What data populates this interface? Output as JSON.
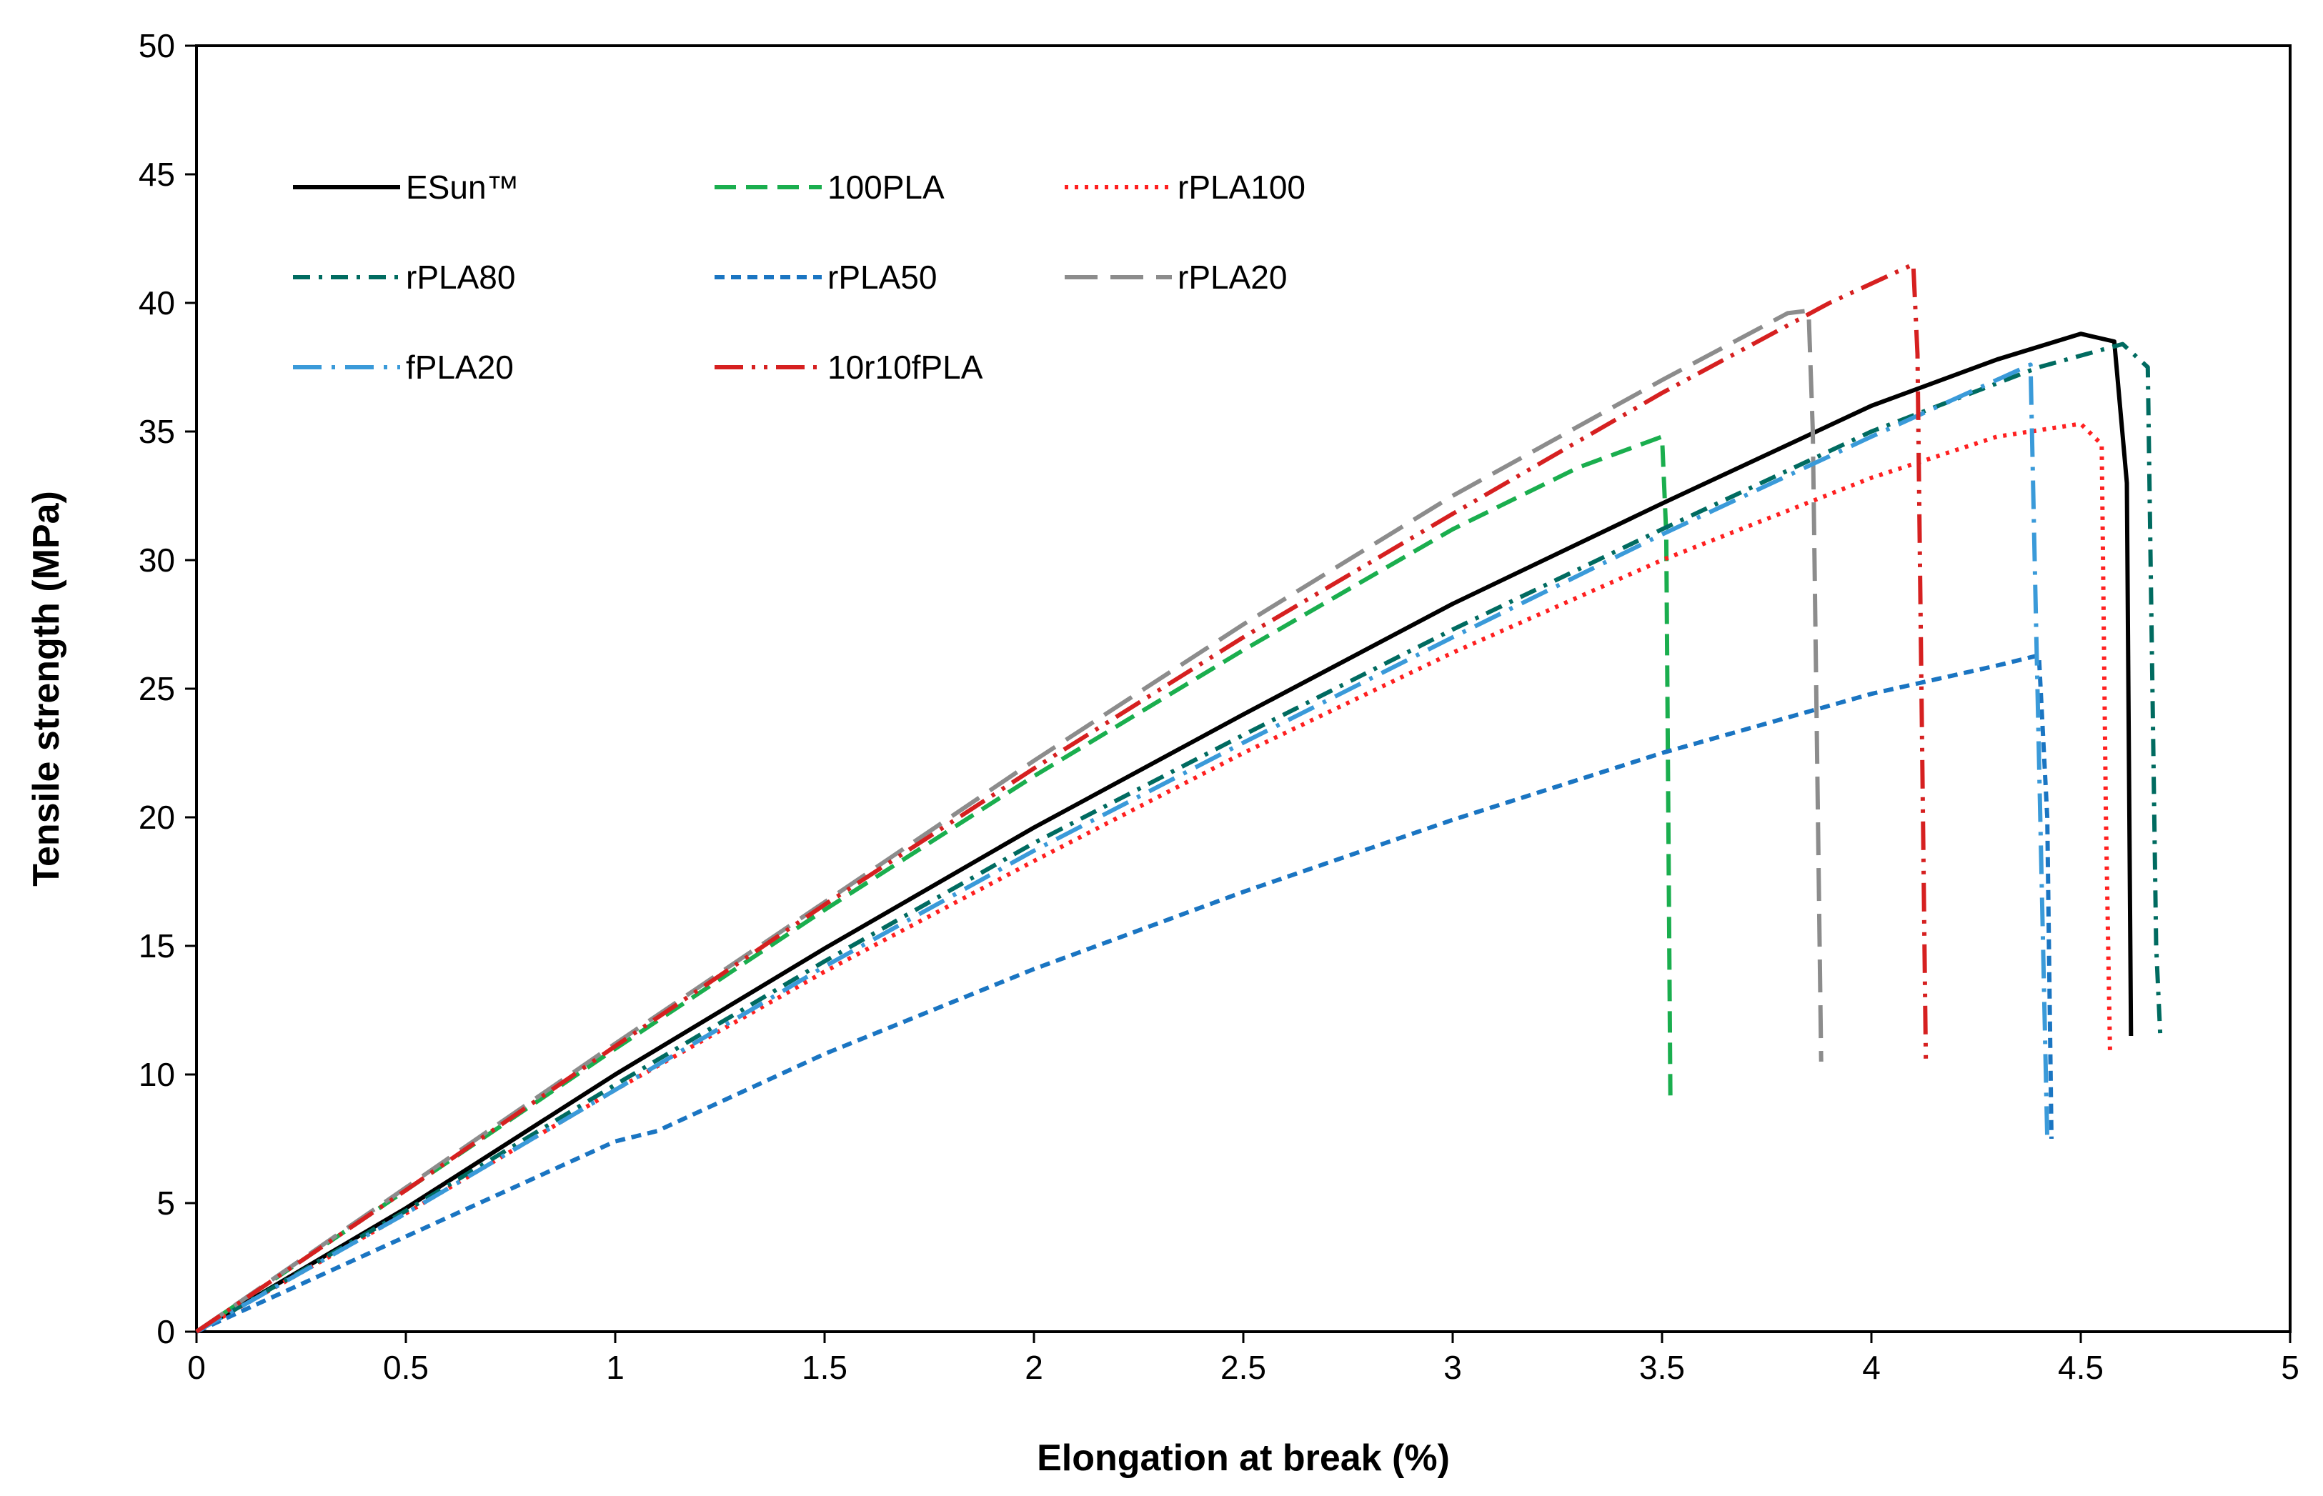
{
  "chart_data": {
    "type": "line",
    "title": "",
    "xlabel": "Elongation at break (%)",
    "ylabel": "Tensile strength (MPa)",
    "xlim": [
      0,
      5
    ],
    "ylim": [
      0,
      50
    ],
    "x_ticks": [
      "0",
      "0.5",
      "1",
      "1.5",
      "2",
      "2.5",
      "3",
      "3.5",
      "4",
      "4.5",
      "5"
    ],
    "y_ticks": [
      "0",
      "5",
      "10",
      "15",
      "20",
      "25",
      "30",
      "35",
      "40",
      "45",
      "50"
    ],
    "grid": false,
    "legend_position": "top-left",
    "series": [
      {
        "name": "ESun™",
        "color": "#000000",
        "dash": "solid",
        "points": [
          [
            0,
            0
          ],
          [
            0.5,
            4.8
          ],
          [
            1,
            10
          ],
          [
            1.5,
            14.9
          ],
          [
            2,
            19.6
          ],
          [
            2.5,
            24
          ],
          [
            3,
            28.3
          ],
          [
            3.5,
            32.2
          ],
          [
            4,
            36
          ],
          [
            4.3,
            37.8
          ],
          [
            4.5,
            38.8
          ],
          [
            4.58,
            38.5
          ],
          [
            4.61,
            33
          ],
          [
            4.62,
            11.5
          ]
        ]
      },
      {
        "name": "100PLA",
        "color": "#1aae4e",
        "dash": "dashed",
        "points": [
          [
            0,
            0
          ],
          [
            0.5,
            5.5
          ],
          [
            1,
            11
          ],
          [
            1.5,
            16.4
          ],
          [
            2,
            21.6
          ],
          [
            2.5,
            26.5
          ],
          [
            3,
            31.2
          ],
          [
            3.3,
            33.6
          ],
          [
            3.5,
            34.8
          ],
          [
            3.51,
            31
          ],
          [
            3.52,
            9
          ]
        ]
      },
      {
        "name": "rPLA100",
        "color": "#ff2020",
        "dash": "dotted",
        "points": [
          [
            0,
            0
          ],
          [
            0.5,
            4.6
          ],
          [
            1,
            9.4
          ],
          [
            1.5,
            14
          ],
          [
            2,
            18.3
          ],
          [
            2.5,
            22.5
          ],
          [
            3,
            26.4
          ],
          [
            3.5,
            30
          ],
          [
            4,
            33.2
          ],
          [
            4.3,
            34.8
          ],
          [
            4.5,
            35.3
          ],
          [
            4.55,
            34.5
          ],
          [
            4.56,
            20
          ],
          [
            4.57,
            10.8
          ]
        ]
      },
      {
        "name": "rPLA80",
        "color": "#006b60",
        "dash": "dashdot",
        "points": [
          [
            0,
            0
          ],
          [
            0.5,
            4.7
          ],
          [
            1,
            9.6
          ],
          [
            1.5,
            14.4
          ],
          [
            2,
            19
          ],
          [
            2.5,
            23.2
          ],
          [
            3,
            27.3
          ],
          [
            3.5,
            31.2
          ],
          [
            4,
            35
          ],
          [
            4.4,
            37.5
          ],
          [
            4.6,
            38.4
          ],
          [
            4.66,
            37.5
          ],
          [
            4.68,
            15
          ],
          [
            4.69,
            11.5
          ]
        ]
      },
      {
        "name": "rPLA50",
        "color": "#1a75c2",
        "dash": "shortdash",
        "points": [
          [
            0,
            0
          ],
          [
            0.5,
            3.7
          ],
          [
            1,
            7.4
          ],
          [
            1.1,
            7.8
          ],
          [
            1.5,
            10.8
          ],
          [
            2,
            14.1
          ],
          [
            2.5,
            17.1
          ],
          [
            3,
            19.9
          ],
          [
            3.5,
            22.5
          ],
          [
            4,
            24.8
          ],
          [
            4.3,
            25.9
          ],
          [
            4.4,
            26.3
          ],
          [
            4.42,
            20
          ],
          [
            4.43,
            7.5
          ]
        ]
      },
      {
        "name": "rPLA20",
        "color": "#8c8c8c",
        "dash": "longdash",
        "points": [
          [
            0,
            0
          ],
          [
            0.5,
            5.6
          ],
          [
            1,
            11.2
          ],
          [
            1.5,
            16.7
          ],
          [
            2,
            22.2
          ],
          [
            2.5,
            27.5
          ],
          [
            3,
            32.5
          ],
          [
            3.5,
            37
          ],
          [
            3.8,
            39.6
          ],
          [
            3.85,
            39.7
          ],
          [
            3.86,
            35
          ],
          [
            3.88,
            10.5
          ]
        ]
      },
      {
        "name": "fPLA20",
        "color": "#3a9ad9",
        "dash": "longdashdot",
        "points": [
          [
            0,
            0
          ],
          [
            0.5,
            4.6
          ],
          [
            1,
            9.4
          ],
          [
            1.5,
            14.2
          ],
          [
            2,
            18.7
          ],
          [
            2.5,
            22.9
          ],
          [
            3,
            27
          ],
          [
            3.5,
            31
          ],
          [
            4,
            34.8
          ],
          [
            4.38,
            37.6
          ],
          [
            4.39,
            30
          ],
          [
            4.42,
            7.5
          ]
        ]
      },
      {
        "name": "10r10fPLA",
        "color": "#d62020",
        "dash": "longdashdotdot",
        "points": [
          [
            0,
            0
          ],
          [
            0.5,
            5.5
          ],
          [
            1,
            11.1
          ],
          [
            1.5,
            16.6
          ],
          [
            2,
            21.9
          ],
          [
            2.5,
            27
          ],
          [
            3,
            31.8
          ],
          [
            3.5,
            36.5
          ],
          [
            3.9,
            40
          ],
          [
            4.1,
            41.5
          ],
          [
            4.11,
            38
          ],
          [
            4.13,
            10.5
          ]
        ]
      }
    ]
  }
}
